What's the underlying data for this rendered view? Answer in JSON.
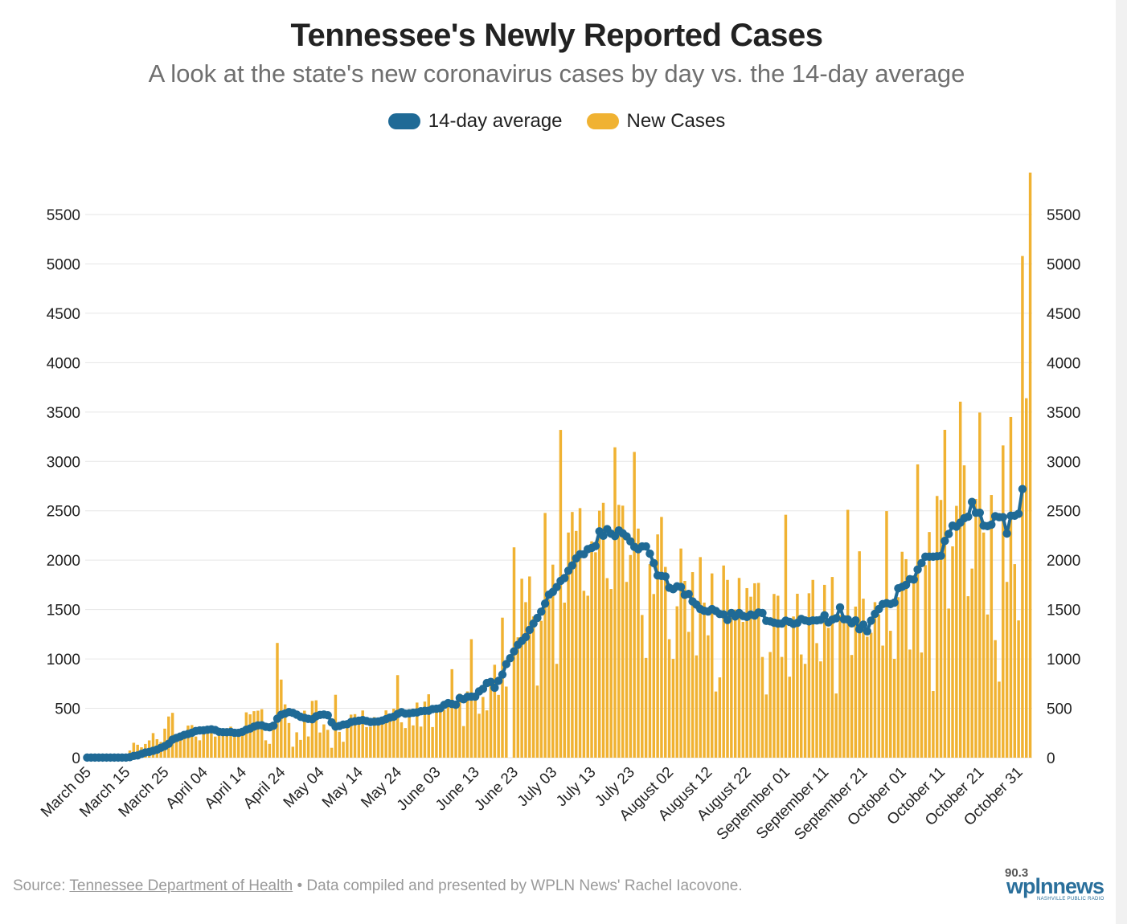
{
  "header": {
    "title": "Tennessee's Newly Reported Cases",
    "subtitle": "A look at the state's new coronavirus cases by day vs. the 14-day average"
  },
  "legend": [
    {
      "label": "14-day average",
      "color": "#1f6a96"
    },
    {
      "label": "New Cases",
      "color": "#f0b232"
    }
  ],
  "footer": {
    "source_prefix": "Source:",
    "source_link": "Tennessee Department of Health",
    "credit": "• Data compiled and presented by WPLN News' Rachel Iacovone."
  },
  "logo": {
    "frequency": "90.3",
    "brand": "wplnnews",
    "tagline": "NASHVILLE PUBLIC RADIO"
  },
  "chart_data": {
    "type": "bar",
    "x_start": "March 05",
    "x_end": "November 07",
    "x_tick_labels": [
      "March 05",
      "March 15",
      "March 25",
      "April 04",
      "April 14",
      "April 24",
      "May 04",
      "May 14",
      "May 24",
      "June 03",
      "June 13",
      "June 23",
      "July 03",
      "July 13",
      "July 23",
      "August 02",
      "August 12",
      "August 22",
      "September 01",
      "September 11",
      "September 21",
      "October 01",
      "October 11",
      "October 21",
      "October 31"
    ],
    "y_ticks": [
      0,
      500,
      1000,
      1500,
      2000,
      2500,
      3000,
      3500,
      4000,
      4500,
      5000,
      5500
    ],
    "ylim": [
      0,
      5900
    ],
    "grid": true,
    "legend_position": "top-center",
    "series": [
      {
        "name": "New Cases",
        "type": "bar",
        "color": "#f0b232",
        "values": [
          1,
          1,
          1,
          4,
          8,
          5,
          6,
          12,
          13,
          21,
          29,
          73,
          151,
          131,
          105,
          139,
          175,
          249,
          187,
          159,
          294,
          417,
          454,
          192,
          184,
          254,
          325,
          330,
          214,
          176,
          302,
          316,
          312,
          214,
          224,
          273,
          299,
          314,
          210,
          242,
          238,
          459,
          439,
          471,
          476,
          491,
          176,
          140,
          360,
          1162,
          791,
          540,
          351,
          111,
          257,
          180,
          476,
          215,
          575,
          581,
          255,
          337,
          282,
          100,
          637,
          261,
          161,
          304,
          436,
          441,
          350,
          478,
          310,
          313,
          411,
          389,
          351,
          479,
          410,
          496,
          836,
          358,
          300,
          491,
          327,
          558,
          315,
          568,
          642,
          310,
          483,
          497,
          485,
          567,
          896,
          518,
          649,
          320,
          671,
          1200,
          646,
          445,
          615,
          479,
          755,
          941,
          636,
          1418,
          720,
          0,
          2130,
          1219,
          1812,
          1575,
          1835,
          1430,
          730,
          1386,
          2478,
          1603,
          1955,
          950,
          3319,
          1570,
          2280,
          2488,
          2296,
          2527,
          1690,
          1640,
          2191,
          2080,
          2501,
          2581,
          1818,
          1708,
          3143,
          2560,
          2552,
          1780,
          2052,
          3096,
          2320,
          1445,
          1010,
          1960,
          1657,
          2261,
          2438,
          1932,
          1200,
          1000,
          1533,
          2118,
          1790,
          1274,
          1879,
          1036,
          2031,
          1570,
          1239,
          1866,
          670,
          813,
          1946,
          1800,
          1487,
          1500,
          1820,
          1375,
          1717,
          1630,
          1766,
          1770,
          1020,
          640,
          1070,
          1658,
          1640,
          1020,
          2460,
          820,
          1430,
          1660,
          1045,
          950,
          1665,
          1800,
          1160,
          975,
          1750,
          1315,
          1830,
          650,
          1445,
          1400,
          2510,
          1040,
          1530,
          2090,
          1610,
          1225,
          1265,
          1575,
          1450,
          1135,
          2497,
          1285,
          1000,
          1625,
          2085,
          2010,
          1095,
          1820,
          2970,
          1065,
          1950,
          2285,
          675,
          2650,
          2610,
          3320,
          1510,
          2140,
          2550,
          3605,
          2960,
          1635,
          1915,
          2620,
          3495,
          2280,
          1450,
          2660,
          1190,
          770,
          3162,
          1780,
          3450,
          1960,
          1390,
          5080,
          3640,
          5925
        ]
      },
      {
        "name": "14-day average",
        "type": "line",
        "color": "#1f6a96",
        "values": [
          1,
          1,
          1,
          1,
          1,
          1,
          1,
          1,
          1,
          1,
          1,
          5,
          18,
          23,
          38,
          52,
          58,
          70,
          82,
          100,
          117,
          141,
          183,
          200,
          214,
          230,
          240,
          253,
          270,
          276,
          277,
          283,
          287,
          280,
          262,
          259,
          258,
          261,
          252,
          252,
          262,
          283,
          295,
          315,
          327,
          328,
          313,
          308,
          324,
          395,
          435,
          447,
          462,
          454,
          436,
          414,
          403,
          393,
          389,
          419,
          433,
          437,
          430,
          357,
          315,
          321,
          335,
          339,
          361,
          369,
          375,
          381,
          372,
          361,
          365,
          367,
          376,
          390,
          406,
          415,
          443,
          461,
          446,
          449,
          455,
          458,
          470,
          474,
          475,
          493,
          496,
          501,
          534,
          553,
          544,
          536,
          605,
          591,
          617,
          619,
          619,
          672,
          697,
          756,
          767,
          708,
          778,
          842,
          948,
          1007,
          1076,
          1143,
          1182,
          1221,
          1294,
          1358,
          1415,
          1478,
          1561,
          1651,
          1678,
          1728,
          1790,
          1819,
          1893,
          1947,
          2018,
          2060,
          2060,
          2112,
          2124,
          2143,
          2292,
          2247,
          2314,
          2268,
          2244,
          2301,
          2272,
          2241,
          2190,
          2135,
          2111,
          2139,
          2139,
          2066,
          1970,
          1845,
          1840,
          1835,
          1721,
          1706,
          1735,
          1729,
          1649,
          1658,
          1582,
          1550,
          1505,
          1487,
          1480,
          1505,
          1485,
          1455,
          1451,
          1395,
          1465,
          1430,
          1465,
          1435,
          1425,
          1450,
          1440,
          1470,
          1465,
          1386,
          1380,
          1367,
          1358,
          1358,
          1388,
          1375,
          1355,
          1365,
          1405,
          1390,
          1380,
          1390,
          1390,
          1396,
          1442,
          1370,
          1398,
          1412,
          1522,
          1402,
          1400,
          1360,
          1390,
          1300,
          1347,
          1280,
          1388,
          1457,
          1505,
          1555,
          1565,
          1555,
          1570,
          1715,
          1730,
          1750,
          1808,
          1804,
          1905,
          1970,
          2035,
          2035,
          2035,
          2040,
          2045,
          2195,
          2265,
          2350,
          2340,
          2380,
          2425,
          2440,
          2590,
          2480,
          2480,
          2350,
          2345,
          2360,
          2445,
          2435,
          2435,
          2270,
          2450,
          2450,
          2470,
          2720
        ]
      }
    ]
  }
}
